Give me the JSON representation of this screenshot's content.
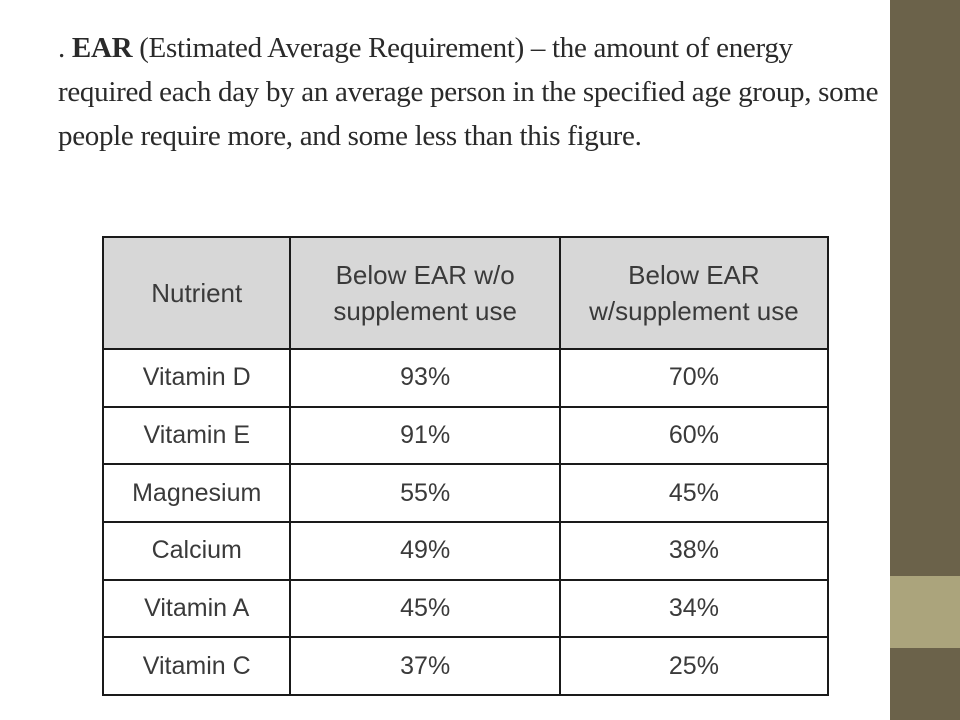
{
  "heading": {
    "prefix": ". ",
    "term": "EAR",
    "text": " (Estimated Average Requirement) – the amount of energy required each day by an average person in the specified age group, some people require more, and some less than this figure."
  },
  "table": {
    "headers": [
      "Nutrient",
      "Below EAR w/o supplement use",
      "Below EAR w/supplement use"
    ],
    "rows": [
      [
        "Vitamin D",
        "93%",
        "70%"
      ],
      [
        "Vitamin E",
        "91%",
        "60%"
      ],
      [
        "Magnesium",
        "55%",
        "45%"
      ],
      [
        "Calcium",
        "49%",
        "38%"
      ],
      [
        "Vitamin A",
        "45%",
        "34%"
      ],
      [
        "Vitamin C",
        "37%",
        "25%"
      ]
    ]
  },
  "colors": {
    "sidebar": "#6b624a",
    "sidebar_accent": "#aba47c",
    "header_fill": "#d7d7d7"
  }
}
